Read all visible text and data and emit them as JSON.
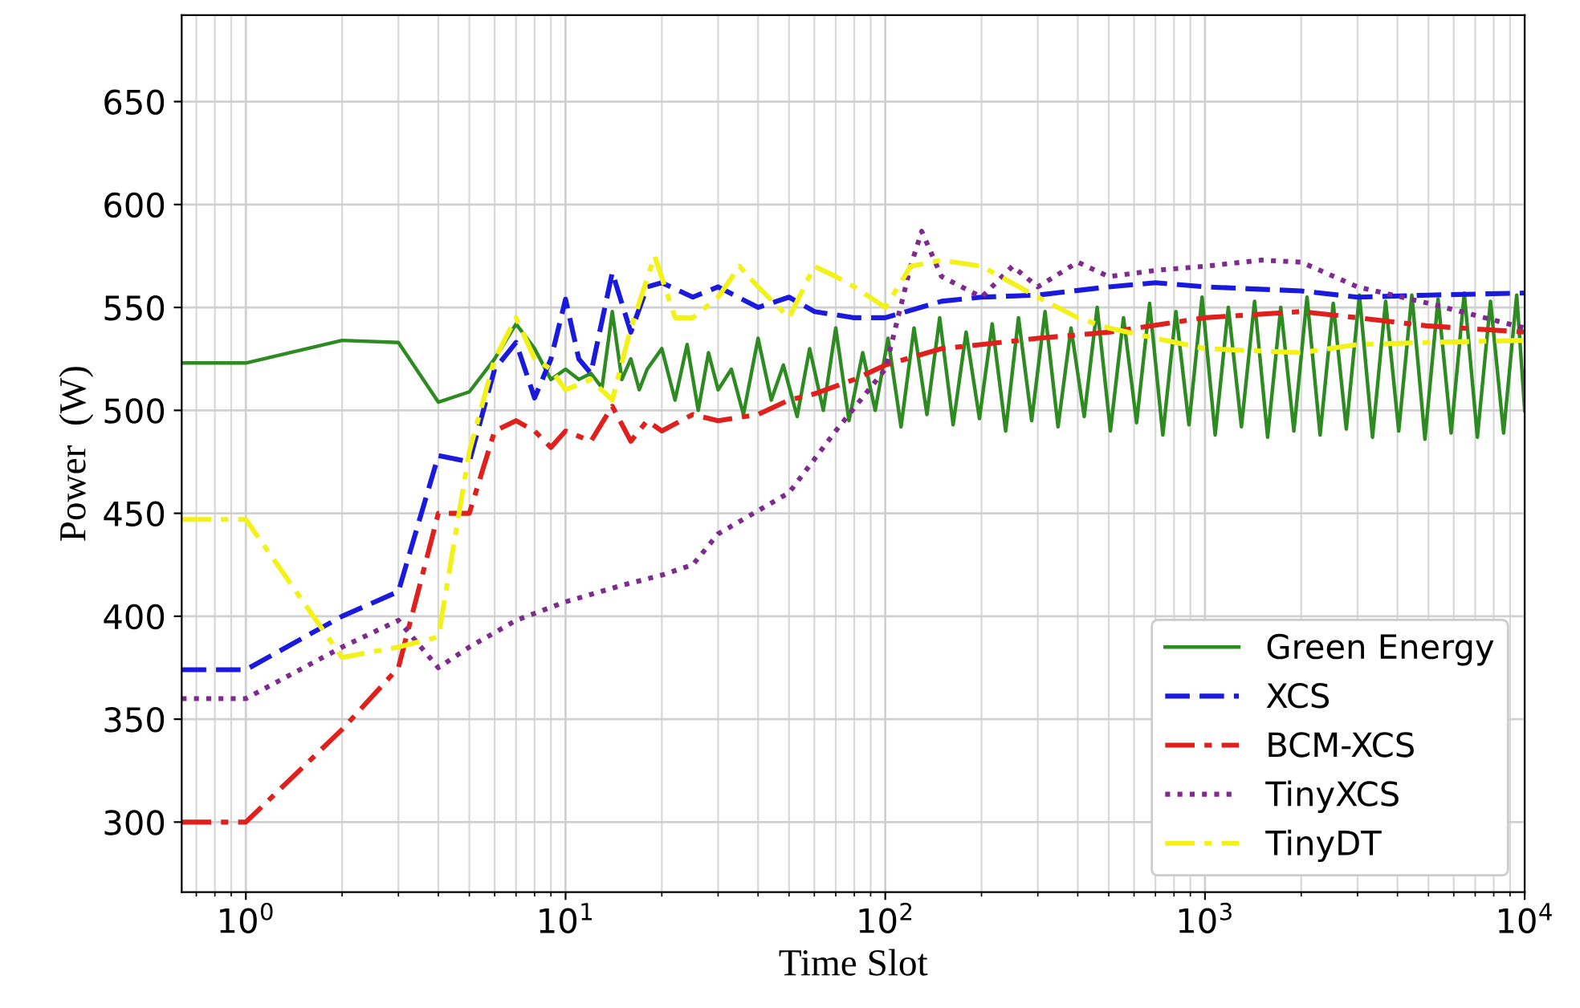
{
  "chart_data": {
    "type": "line",
    "xlabel": "Time Slot",
    "ylabel": "Power  (W)",
    "log": "x",
    "grid": true,
    "legend": "bottom right",
    "xlim": [
      0.63,
      10000
    ],
    "xticks": [
      {
        "value": 1,
        "label": "10$^{0}$"
      },
      {
        "value": 10,
        "label": "10$^{1}$"
      },
      {
        "value": 100,
        "label": "10$^{2}$"
      },
      {
        "value": 1000,
        "label": "10$^{3}$"
      },
      {
        "value": 10000,
        "label": "10$^{4}$"
      }
    ],
    "ylim": [
      266,
      692
    ],
    "yticks": [
      300,
      350,
      400,
      450,
      500,
      550,
      600,
      650
    ],
    "series": [
      {
        "name": "Green Energy",
        "color": "#2e8b22",
        "line_style": "solid",
        "x": [
          0.63,
          1,
          2,
          3,
          4,
          5,
          6,
          7,
          8,
          9,
          10,
          11,
          12,
          13,
          14,
          15,
          16,
          17,
          18,
          20,
          22,
          24,
          26,
          28,
          30,
          33,
          36,
          40,
          44,
          48,
          53,
          58,
          64,
          70,
          77,
          85,
          93,
          102,
          112,
          123,
          135,
          148,
          163,
          179,
          197,
          216,
          238,
          261,
          287,
          316,
          347,
          381,
          419,
          460,
          506,
          556,
          611,
          671,
          738,
          811,
          891,
          979,
          1076,
          1183,
          1300,
          1429,
          1570,
          1726,
          1897,
          2085,
          2291,
          2518,
          2767,
          3041,
          3342,
          3673,
          4036,
          4436,
          4875,
          5358,
          5888,
          6471,
          7112,
          7816,
          8590,
          9440,
          10000
        ],
        "values": [
          523,
          523,
          534,
          533,
          504,
          509,
          525,
          542,
          530,
          515,
          520,
          515,
          518,
          511,
          548,
          515,
          525,
          510,
          520,
          530,
          505,
          532,
          500,
          528,
          510,
          520,
          498,
          535,
          505,
          522,
          497,
          530,
          500,
          540,
          495,
          528,
          500,
          535,
          492,
          540,
          498,
          545,
          493,
          538,
          496,
          542,
          490,
          545,
          495,
          548,
          492,
          540,
          497,
          550,
          490,
          545,
          494,
          552,
          488,
          548,
          493,
          555,
          488,
          550,
          492,
          553,
          487,
          550,
          490,
          555,
          488,
          552,
          491,
          556,
          487,
          553,
          490,
          556,
          486,
          554,
          489,
          557,
          487,
          553,
          489,
          556,
          500
        ]
      },
      {
        "name": "XCS",
        "color": "#1a1adf",
        "line_style": "dashed",
        "x": [
          0.63,
          1,
          2,
          3,
          4,
          5,
          6,
          7,
          8,
          9,
          10,
          11,
          12,
          14,
          16,
          18,
          20,
          25,
          30,
          40,
          50,
          60,
          80,
          100,
          150,
          200,
          300,
          500,
          700,
          1000,
          2000,
          3000,
          5000,
          10000
        ],
        "values": [
          374,
          374,
          400,
          412,
          478,
          475,
          520,
          533,
          506,
          525,
          554,
          525,
          518,
          567,
          538,
          560,
          562,
          555,
          560,
          550,
          555,
          548,
          545,
          545,
          553,
          555,
          556,
          560,
          562,
          560,
          558,
          555,
          556,
          557
        ]
      },
      {
        "name": "BCM-XCS",
        "color": "#e0201c",
        "line_style": "dashdot",
        "x": [
          0.63,
          1,
          2,
          3,
          4,
          5,
          6,
          7,
          8,
          9,
          10,
          12,
          14,
          16,
          18,
          20,
          25,
          30,
          40,
          50,
          60,
          80,
          100,
          150,
          200,
          300,
          500,
          1000,
          2000,
          3000,
          5000,
          10000
        ],
        "values": [
          300,
          300,
          345,
          375,
          450,
          450,
          490,
          495,
          490,
          482,
          490,
          485,
          502,
          485,
          495,
          490,
          498,
          495,
          498,
          505,
          508,
          515,
          522,
          530,
          532,
          535,
          538,
          545,
          548,
          545,
          541,
          538
        ]
      },
      {
        "name": "TinyXCS",
        "color": "#7f2a8f",
        "line_style": "dotted",
        "x": [
          0.63,
          1,
          2,
          3,
          4,
          5,
          7,
          10,
          15,
          20,
          25,
          30,
          50,
          70,
          100,
          120,
          130,
          150,
          200,
          250,
          300,
          400,
          500,
          700,
          1000,
          1500,
          2000,
          3000,
          5000,
          10000
        ],
        "values": [
          360,
          360,
          385,
          398,
          375,
          385,
          398,
          407,
          415,
          420,
          425,
          440,
          460,
          490,
          520,
          570,
          587,
          565,
          555,
          570,
          560,
          572,
          565,
          568,
          570,
          573,
          572,
          560,
          552,
          540
        ]
      },
      {
        "name": "TinyDT",
        "color": "#f2f21a",
        "line_style": "dashdot",
        "x": [
          0.63,
          1,
          2,
          3,
          4,
          5,
          6,
          7,
          8,
          9,
          10,
          12,
          14,
          16,
          19,
          22,
          25,
          30,
          35,
          40,
          50,
          60,
          70,
          80,
          100,
          120,
          150,
          200,
          300,
          400,
          500,
          700,
          1000,
          2000,
          3000,
          5000,
          10000
        ],
        "values": [
          447,
          447,
          380,
          385,
          390,
          480,
          525,
          545,
          525,
          520,
          510,
          515,
          505,
          540,
          575,
          545,
          545,
          555,
          570,
          560,
          545,
          570,
          565,
          560,
          550,
          570,
          573,
          570,
          555,
          545,
          540,
          535,
          530,
          528,
          532,
          533,
          534
        ]
      }
    ]
  }
}
